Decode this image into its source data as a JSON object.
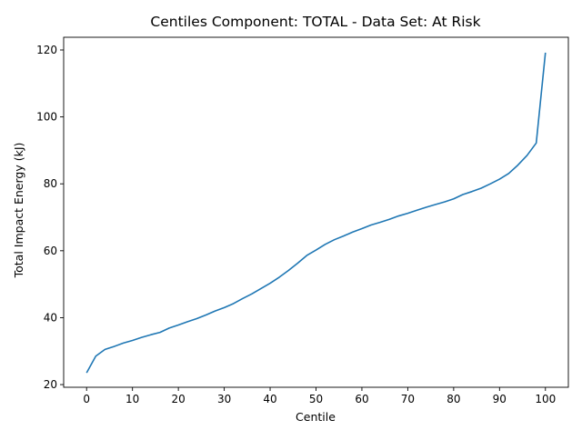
{
  "chart_data": {
    "type": "line",
    "title": "Centiles Component: TOTAL - Data Set: At Risk",
    "xlabel": "Centile",
    "ylabel": "Total Impact Energy (kJ)",
    "xlim": [
      -5,
      105
    ],
    "ylim": [
      19.2,
      123.8
    ],
    "x_ticks": [
      0,
      10,
      20,
      30,
      40,
      50,
      60,
      70,
      80,
      90,
      100
    ],
    "y_ticks": [
      20,
      40,
      60,
      80,
      100,
      120
    ],
    "grid": false,
    "legend": "none",
    "series": [
      {
        "color": "#1f77b4",
        "x": [
          0,
          2,
          4,
          6,
          8,
          10,
          12,
          14,
          16,
          18,
          20,
          22,
          24,
          26,
          28,
          30,
          32,
          34,
          36,
          38,
          40,
          42,
          44,
          46,
          48,
          50,
          52,
          54,
          56,
          58,
          60,
          62,
          64,
          66,
          68,
          70,
          72,
          74,
          76,
          78,
          80,
          82,
          84,
          86,
          88,
          90,
          92,
          94,
          96,
          98,
          100
        ],
        "y": [
          23.5,
          28.5,
          30.5,
          31.4,
          32.4,
          33.2,
          34.1,
          34.9,
          35.6,
          36.9,
          37.8,
          38.8,
          39.7,
          40.8,
          42.0,
          43.0,
          44.2,
          45.7,
          47.1,
          48.7,
          50.3,
          52.1,
          54.1,
          56.3,
          58.6,
          60.2,
          61.9,
          63.3,
          64.4,
          65.6,
          66.6,
          67.7,
          68.5,
          69.4,
          70.4,
          71.2,
          72.1,
          73.0,
          73.8,
          74.6,
          75.5,
          76.8,
          77.7,
          78.7,
          80.0,
          81.4,
          83.1,
          85.6,
          88.5,
          92.2,
          119.2
        ]
      }
    ]
  }
}
